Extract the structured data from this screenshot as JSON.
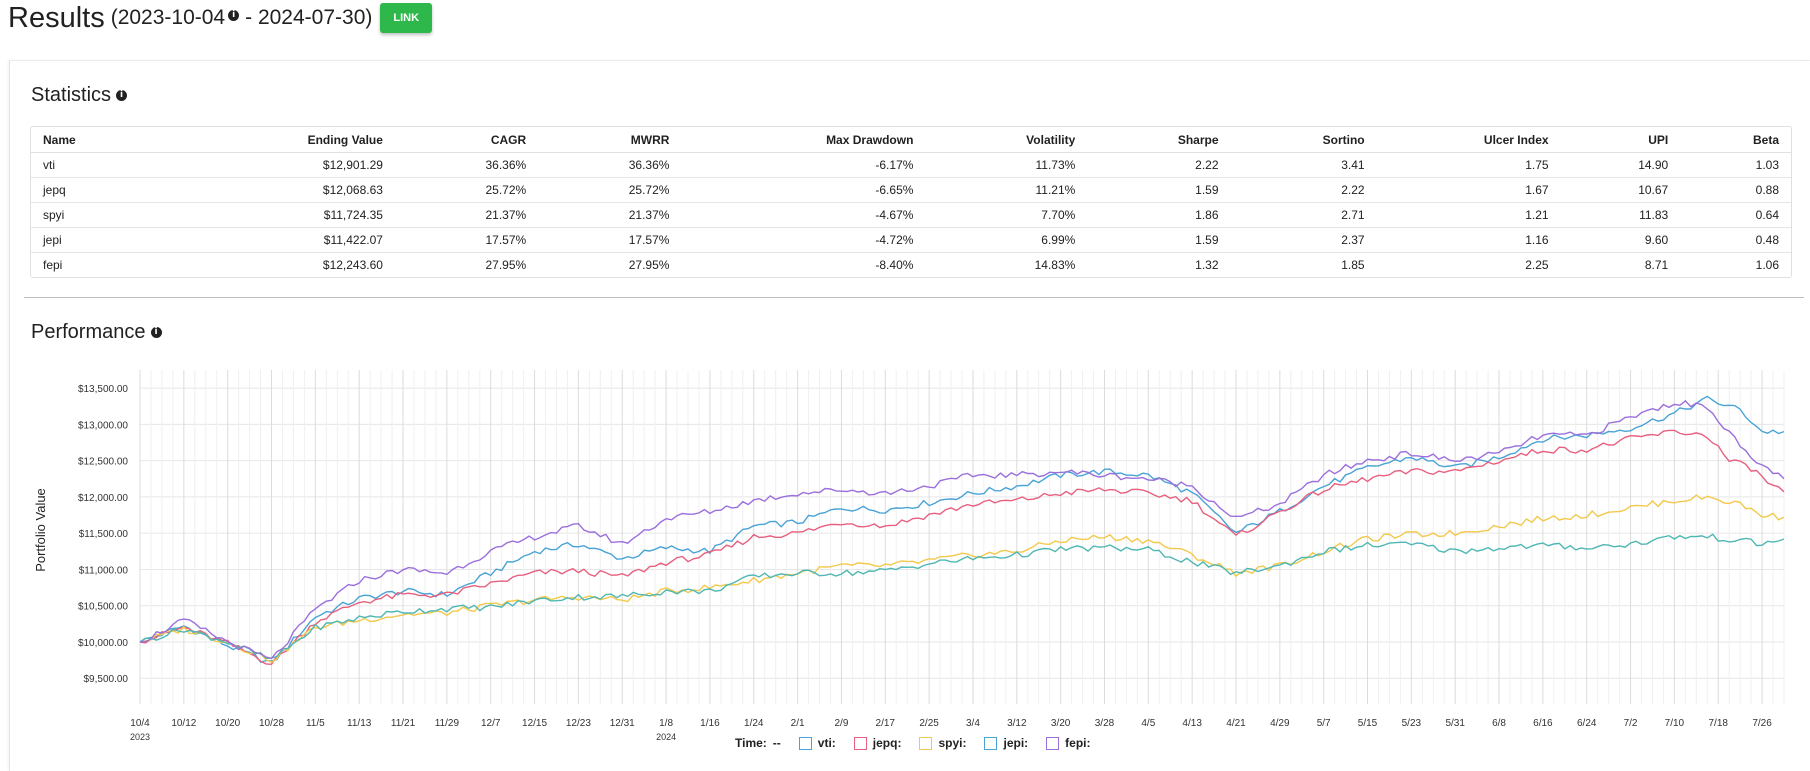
{
  "header": {
    "title": "Results",
    "range_start": "(2023-10-04",
    "range_end": "- 2024-07-30)",
    "link_label": "LINK",
    "info_icon": "info-icon"
  },
  "statistics": {
    "title": "Statistics",
    "columns": [
      "Name",
      "Ending Value",
      "CAGR",
      "MWRR",
      "Max Drawdown",
      "Volatility",
      "Sharpe",
      "Sortino",
      "Ulcer Index",
      "UPI",
      "Beta"
    ],
    "rows": [
      [
        "vti",
        "$12,901.29",
        "36.36%",
        "36.36%",
        "-6.17%",
        "11.73%",
        "2.22",
        "3.41",
        "1.75",
        "14.90",
        "1.03"
      ],
      [
        "jepq",
        "$12,068.63",
        "25.72%",
        "25.72%",
        "-6.65%",
        "11.21%",
        "1.59",
        "2.22",
        "1.67",
        "10.67",
        "0.88"
      ],
      [
        "spyi",
        "$11,724.35",
        "21.37%",
        "21.37%",
        "-4.67%",
        "7.70%",
        "1.86",
        "2.71",
        "1.21",
        "11.83",
        "0.64"
      ],
      [
        "jepi",
        "$11,422.07",
        "17.57%",
        "17.57%",
        "-4.72%",
        "6.99%",
        "1.59",
        "2.37",
        "1.16",
        "9.60",
        "0.48"
      ],
      [
        "fepi",
        "$12,243.60",
        "27.95%",
        "27.95%",
        "-8.40%",
        "14.83%",
        "1.32",
        "1.85",
        "2.25",
        "8.71",
        "1.06"
      ]
    ]
  },
  "performance": {
    "title": "Performance"
  },
  "chart_data": {
    "type": "line",
    "ylabel": "Portfolio Value",
    "ylim": [
      9200,
      13750
    ],
    "yticks": [
      9500,
      10000,
      10500,
      11000,
      11500,
      12000,
      12500,
      13000,
      13500
    ],
    "ytick_labels": [
      "$9,500.00",
      "$10,000.00",
      "$10,500.00",
      "$11,000.00",
      "$11,500.00",
      "$12,000.00",
      "$12,500.00",
      "$13,000.00",
      "$13,500.00"
    ],
    "xticks": [
      "10/4",
      "10/12",
      "10/20",
      "10/28",
      "11/5",
      "11/13",
      "11/21",
      "11/29",
      "12/7",
      "12/15",
      "12/23",
      "12/31",
      "1/8",
      "1/16",
      "1/24",
      "2/1",
      "2/9",
      "2/17",
      "2/25",
      "3/4",
      "3/12",
      "3/20",
      "3/28",
      "4/5",
      "4/13",
      "4/21",
      "4/29",
      "5/7",
      "5/15",
      "5/23",
      "5/31",
      "6/8",
      "6/16",
      "6/24",
      "7/2",
      "7/10",
      "7/18",
      "7/26"
    ],
    "xtick_days": [
      0,
      8,
      16,
      24,
      32,
      40,
      48,
      56,
      64,
      72,
      80,
      88,
      96,
      104,
      112,
      120,
      128,
      136,
      144,
      152,
      160,
      168,
      176,
      184,
      192,
      200,
      208,
      216,
      224,
      232,
      240,
      248,
      256,
      264,
      272,
      280,
      288,
      296
    ],
    "year_labels": [
      {
        "day": 0,
        "label": "2023"
      },
      {
        "day": 96,
        "label": "2024"
      }
    ],
    "x_max_day": 300,
    "series": [
      {
        "name": "vti",
        "color": "#4aa3d6",
        "days": [
          0,
          8,
          16,
          24,
          32,
          40,
          48,
          56,
          64,
          72,
          80,
          88,
          96,
          104,
          112,
          120,
          128,
          136,
          144,
          152,
          160,
          168,
          176,
          184,
          192,
          200,
          208,
          216,
          224,
          232,
          240,
          248,
          256,
          264,
          272,
          280,
          286,
          292,
          296,
          300
        ],
        "values": [
          10000,
          10220,
          9950,
          9700,
          10350,
          10600,
          10700,
          10650,
          10950,
          11250,
          11350,
          11150,
          11300,
          11250,
          11600,
          11650,
          11850,
          11820,
          11920,
          12050,
          12150,
          12300,
          12350,
          12300,
          12050,
          11500,
          11800,
          12150,
          12400,
          12550,
          12400,
          12550,
          12800,
          12850,
          12950,
          13150,
          13350,
          13200,
          12900,
          12900
        ]
      },
      {
        "name": "jepq",
        "color": "#e8607f",
        "days": [
          0,
          8,
          16,
          24,
          32,
          40,
          48,
          56,
          64,
          72,
          80,
          88,
          96,
          104,
          112,
          120,
          128,
          136,
          144,
          152,
          160,
          168,
          176,
          184,
          192,
          200,
          208,
          216,
          224,
          232,
          240,
          248,
          256,
          264,
          272,
          280,
          286,
          290,
          294,
          297,
          300
        ],
        "values": [
          10000,
          10200,
          9980,
          9700,
          10280,
          10550,
          10650,
          10650,
          10800,
          10950,
          10980,
          10900,
          11100,
          11200,
          11450,
          11500,
          11650,
          11600,
          11750,
          11900,
          11950,
          12050,
          12100,
          12050,
          11950,
          11450,
          11800,
          12100,
          12250,
          12350,
          12350,
          12500,
          12650,
          12650,
          12800,
          12900,
          12850,
          12500,
          12400,
          12200,
          12070
        ]
      },
      {
        "name": "spyi",
        "color": "#f2c94c",
        "days": [
          0,
          8,
          16,
          24,
          32,
          40,
          48,
          56,
          64,
          72,
          80,
          88,
          96,
          104,
          112,
          120,
          128,
          136,
          144,
          152,
          160,
          168,
          176,
          184,
          192,
          200,
          208,
          216,
          224,
          232,
          240,
          248,
          256,
          264,
          272,
          280,
          286,
          292,
          296,
          300
        ],
        "values": [
          10000,
          10180,
          10000,
          9750,
          10200,
          10300,
          10380,
          10400,
          10500,
          10580,
          10620,
          10580,
          10700,
          10750,
          10850,
          10950,
          11050,
          11050,
          11120,
          11200,
          11250,
          11400,
          11450,
          11400,
          11200,
          10950,
          11050,
          11250,
          11420,
          11480,
          11500,
          11600,
          11700,
          11750,
          11850,
          11950,
          12000,
          11900,
          11750,
          11720
        ]
      },
      {
        "name": "jepi",
        "color": "#4fb7b3",
        "days": [
          0,
          8,
          16,
          24,
          32,
          40,
          48,
          56,
          64,
          72,
          80,
          88,
          96,
          104,
          112,
          120,
          128,
          136,
          144,
          152,
          160,
          168,
          176,
          184,
          192,
          200,
          208,
          216,
          224,
          232,
          240,
          248,
          256,
          264,
          272,
          280,
          286,
          292,
          296,
          300
        ],
        "values": [
          10000,
          10180,
          10000,
          9750,
          10200,
          10330,
          10420,
          10460,
          10480,
          10570,
          10620,
          10630,
          10700,
          10700,
          10900,
          10950,
          10950,
          10980,
          11080,
          11150,
          11200,
          11280,
          11300,
          11270,
          11100,
          10950,
          11050,
          11250,
          11330,
          11350,
          11250,
          11300,
          11330,
          11300,
          11350,
          11450,
          11450,
          11400,
          11350,
          11420
        ]
      },
      {
        "name": "fepi",
        "color": "#9b6fdc",
        "days": [
          0,
          8,
          16,
          24,
          32,
          40,
          48,
          56,
          64,
          72,
          80,
          88,
          96,
          104,
          112,
          120,
          128,
          136,
          144,
          152,
          160,
          168,
          176,
          184,
          192,
          200,
          208,
          216,
          224,
          232,
          240,
          248,
          256,
          264,
          272,
          280,
          286,
          290,
          294,
          297,
          300
        ],
        "values": [
          10000,
          10300,
          10000,
          9750,
          10450,
          10850,
          11000,
          10950,
          11250,
          11450,
          11600,
          11350,
          11700,
          11800,
          11950,
          12050,
          12100,
          12050,
          12150,
          12300,
          12300,
          12350,
          12300,
          12250,
          12150,
          11700,
          11900,
          12300,
          12500,
          12600,
          12500,
          12600,
          12850,
          12850,
          13100,
          13300,
          13250,
          12900,
          12500,
          12400,
          12250
        ]
      }
    ],
    "legend": {
      "time_label": "Time:",
      "time_value": "--",
      "entries": [
        "vti:",
        "jepq:",
        "spyi:",
        "jepi:",
        "fepi:"
      ]
    }
  }
}
